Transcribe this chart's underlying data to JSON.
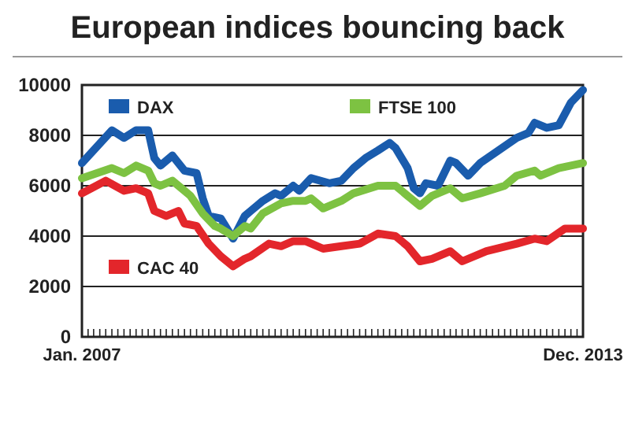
{
  "chart_data": {
    "type": "line",
    "title": "European indices bouncing back",
    "xlim": [
      "2007-01",
      "2013-12"
    ],
    "xticks": [
      {
        "value": "2007-01",
        "label": "Jan. 2007"
      },
      {
        "value": "2007-02",
        "label": null
      },
      {
        "value": "2007-03",
        "label": null
      },
      {
        "value": "2007-04",
        "label": null
      },
      {
        "value": "2007-05",
        "label": null
      },
      {
        "value": "2007-06",
        "label": null
      },
      {
        "value": "2007-07",
        "label": null
      },
      {
        "value": "2007-08",
        "label": null
      },
      {
        "value": "2007-09",
        "label": null
      },
      {
        "value": "2007-10",
        "label": null
      },
      {
        "value": "2007-11",
        "label": null
      },
      {
        "value": "2007-12",
        "label": null
      },
      {
        "value": "2008-01",
        "label": null
      },
      {
        "value": "2008-02",
        "label": null
      },
      {
        "value": "2008-03",
        "label": null
      },
      {
        "value": "2008-04",
        "label": null
      },
      {
        "value": "2008-05",
        "label": null
      },
      {
        "value": "2008-06",
        "label": null
      },
      {
        "value": "2008-07",
        "label": null
      },
      {
        "value": "2008-08",
        "label": null
      },
      {
        "value": "2008-09",
        "label": null
      },
      {
        "value": "2008-10",
        "label": null
      },
      {
        "value": "2008-11",
        "label": null
      },
      {
        "value": "2008-12",
        "label": null
      },
      {
        "value": "2009-01",
        "label": null
      },
      {
        "value": "2009-02",
        "label": null
      },
      {
        "value": "2009-03",
        "label": null
      },
      {
        "value": "2009-04",
        "label": null
      },
      {
        "value": "2009-05",
        "label": null
      },
      {
        "value": "2009-06",
        "label": null
      },
      {
        "value": "2009-07",
        "label": null
      },
      {
        "value": "2009-08",
        "label": null
      },
      {
        "value": "2009-09",
        "label": null
      },
      {
        "value": "2009-10",
        "label": null
      },
      {
        "value": "2009-11",
        "label": null
      },
      {
        "value": "2009-12",
        "label": null
      },
      {
        "value": "2010-01",
        "label": null
      },
      {
        "value": "2010-02",
        "label": null
      },
      {
        "value": "2010-03",
        "label": null
      },
      {
        "value": "2010-04",
        "label": null
      },
      {
        "value": "2010-05",
        "label": null
      },
      {
        "value": "2010-06",
        "label": null
      },
      {
        "value": "2010-07",
        "label": null
      },
      {
        "value": "2010-08",
        "label": null
      },
      {
        "value": "2010-09",
        "label": null
      },
      {
        "value": "2010-10",
        "label": null
      },
      {
        "value": "2010-11",
        "label": null
      },
      {
        "value": "2010-12",
        "label": null
      },
      {
        "value": "2011-01",
        "label": null
      },
      {
        "value": "2011-02",
        "label": null
      },
      {
        "value": "2011-03",
        "label": null
      },
      {
        "value": "2011-04",
        "label": null
      },
      {
        "value": "2011-05",
        "label": null
      },
      {
        "value": "2011-06",
        "label": null
      },
      {
        "value": "2011-07",
        "label": null
      },
      {
        "value": "2011-08",
        "label": null
      },
      {
        "value": "2011-09",
        "label": null
      },
      {
        "value": "2011-10",
        "label": null
      },
      {
        "value": "2011-11",
        "label": null
      },
      {
        "value": "2011-12",
        "label": null
      },
      {
        "value": "2012-01",
        "label": null
      },
      {
        "value": "2012-02",
        "label": null
      },
      {
        "value": "2012-03",
        "label": null
      },
      {
        "value": "2012-04",
        "label": null
      },
      {
        "value": "2012-05",
        "label": null
      },
      {
        "value": "2012-06",
        "label": null
      },
      {
        "value": "2012-07",
        "label": null
      },
      {
        "value": "2012-08",
        "label": null
      },
      {
        "value": "2012-09",
        "label": null
      },
      {
        "value": "2012-10",
        "label": null
      },
      {
        "value": "2012-11",
        "label": null
      },
      {
        "value": "2012-12",
        "label": null
      },
      {
        "value": "2013-01",
        "label": null
      },
      {
        "value": "2013-02",
        "label": null
      },
      {
        "value": "2013-03",
        "label": null
      },
      {
        "value": "2013-04",
        "label": null
      },
      {
        "value": "2013-05",
        "label": null
      },
      {
        "value": "2013-06",
        "label": null
      },
      {
        "value": "2013-07",
        "label": null
      },
      {
        "value": "2013-08",
        "label": null
      },
      {
        "value": "2013-09",
        "label": null
      },
      {
        "value": "2013-10",
        "label": null
      },
      {
        "value": "2013-11",
        "label": null
      },
      {
        "value": "2013-12",
        "label": "Dec. 2013"
      }
    ],
    "ylim": [
      0,
      10000
    ],
    "yticks": [
      0,
      2000,
      4000,
      6000,
      8000,
      10000
    ],
    "grid": "y",
    "legend": "top left",
    "marker": "none",
    "line_style": "solid",
    "series": [
      {
        "name": "DAX",
        "color": "#1a5cad",
        "x": [
          "2007-01",
          "2007-06",
          "2007-08",
          "2007-10",
          "2007-12",
          "2008-01",
          "2008-02",
          "2008-04",
          "2008-06",
          "2008-08",
          "2008-09",
          "2008-10",
          "2008-12",
          "2009-02",
          "2009-04",
          "2009-05",
          "2009-07",
          "2009-09",
          "2009-10",
          "2009-12",
          "2010-01",
          "2010-03",
          "2010-06",
          "2010-08",
          "2010-10",
          "2010-12",
          "2011-02",
          "2011-04",
          "2011-05",
          "2011-07",
          "2011-08",
          "2011-09",
          "2011-10",
          "2011-12",
          "2012-02",
          "2012-03",
          "2012-05",
          "2012-07",
          "2012-10",
          "2013-01",
          "2013-03",
          "2013-04",
          "2013-06",
          "2013-08",
          "2013-10",
          "2013-12"
        ],
        "values": [
          6900,
          8200,
          7900,
          8200,
          8200,
          7100,
          6800,
          7200,
          6600,
          6500,
          5500,
          4800,
          4700,
          3900,
          4800,
          5000,
          5400,
          5700,
          5600,
          6000,
          5800,
          6300,
          6100,
          6200,
          6700,
          7100,
          7400,
          7700,
          7500,
          6700,
          5900,
          5700,
          6100,
          6000,
          7000,
          6900,
          6400,
          6900,
          7400,
          7900,
          8100,
          8500,
          8300,
          8400,
          9300,
          9800
        ]
      },
      {
        "name": "FTSE 100",
        "color": "#7dc242",
        "x": [
          "2007-01",
          "2007-06",
          "2007-08",
          "2007-10",
          "2007-12",
          "2008-01",
          "2008-02",
          "2008-04",
          "2008-06",
          "2008-07",
          "2008-09",
          "2008-11",
          "2008-12",
          "2009-02",
          "2009-04",
          "2009-05",
          "2009-07",
          "2009-10",
          "2009-12",
          "2010-02",
          "2010-03",
          "2010-05",
          "2010-08",
          "2010-10",
          "2011-02",
          "2011-05",
          "2011-07",
          "2011-09",
          "2011-11",
          "2012-02",
          "2012-04",
          "2012-07",
          "2012-11",
          "2013-01",
          "2013-04",
          "2013-05",
          "2013-08",
          "2013-10",
          "2013-12"
        ],
        "values": [
          6300,
          6700,
          6500,
          6800,
          6600,
          6100,
          6000,
          6200,
          5800,
          5600,
          4900,
          4400,
          4300,
          4000,
          4400,
          4300,
          4900,
          5300,
          5400,
          5400,
          5500,
          5100,
          5400,
          5700,
          6000,
          6000,
          5600,
          5200,
          5600,
          5900,
          5500,
          5700,
          6000,
          6400,
          6600,
          6400,
          6700,
          6800,
          6900
        ]
      },
      {
        "name": "CAC 40",
        "color": "#e3262b",
        "x": [
          "2007-01",
          "2007-05",
          "2007-08",
          "2007-10",
          "2007-12",
          "2008-01",
          "2008-03",
          "2008-05",
          "2008-06",
          "2008-08",
          "2008-10",
          "2008-12",
          "2009-02",
          "2009-04",
          "2009-05",
          "2009-08",
          "2009-10",
          "2009-12",
          "2010-02",
          "2010-05",
          "2010-08",
          "2010-11",
          "2011-02",
          "2011-05",
          "2011-07",
          "2011-09",
          "2011-11",
          "2012-02",
          "2012-04",
          "2012-08",
          "2013-01",
          "2013-04",
          "2013-06",
          "2013-09",
          "2013-12"
        ],
        "values": [
          5700,
          6200,
          5800,
          5900,
          5700,
          5000,
          4800,
          5000,
          4500,
          4400,
          3700,
          3200,
          2800,
          3100,
          3200,
          3700,
          3600,
          3800,
          3800,
          3500,
          3600,
          3700,
          4100,
          4000,
          3600,
          3000,
          3100,
          3400,
          3000,
          3400,
          3700,
          3900,
          3800,
          4300,
          4300
        ]
      }
    ]
  }
}
